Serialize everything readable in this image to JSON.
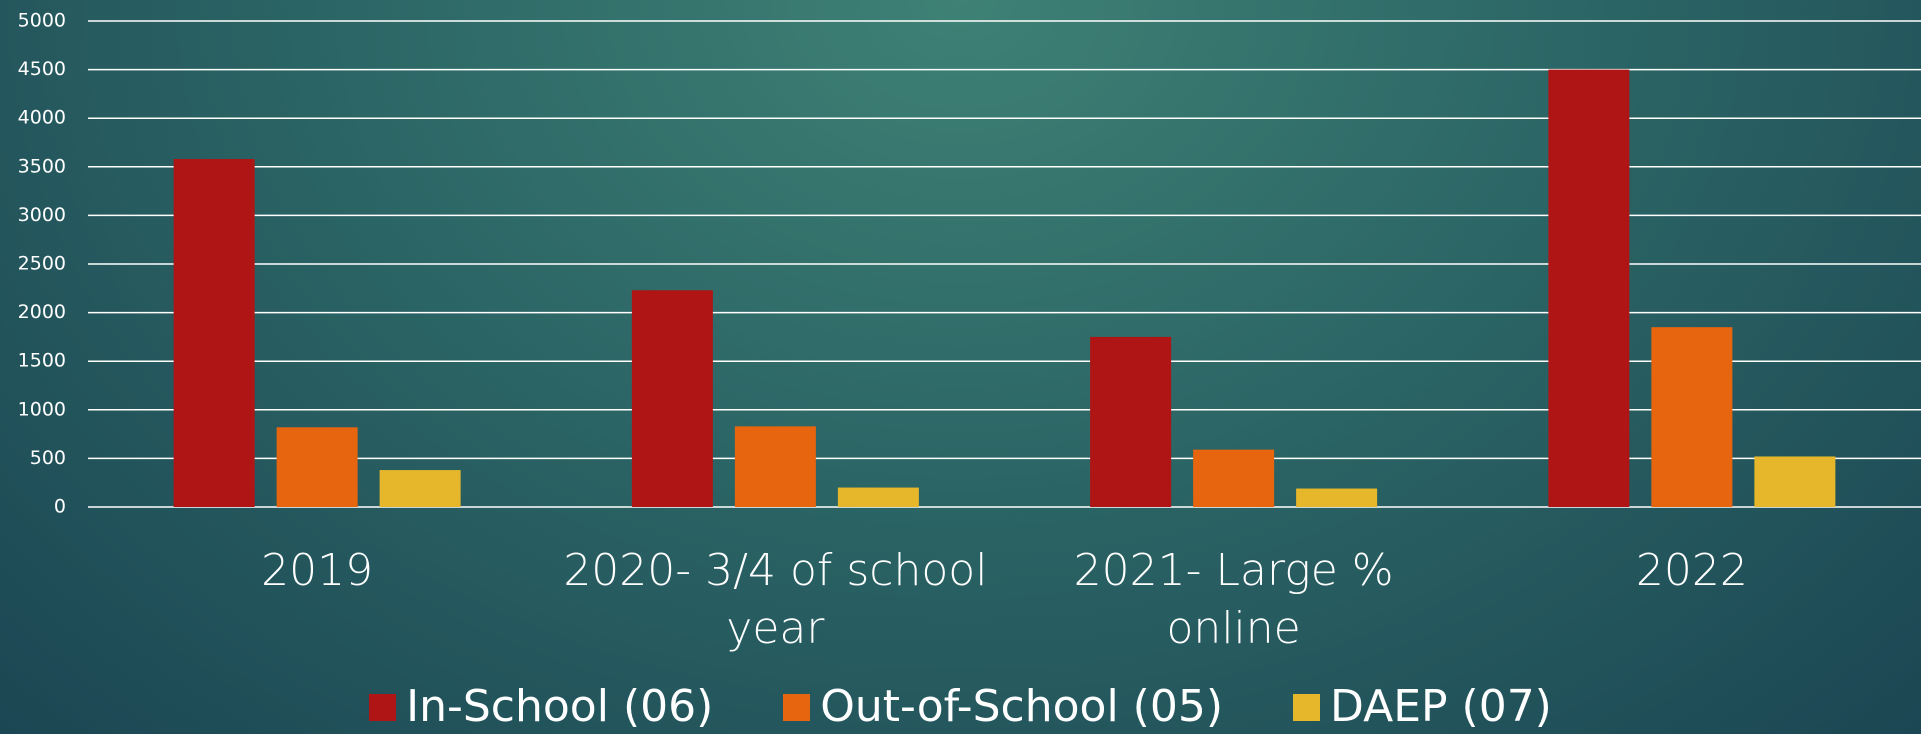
{
  "chart_data": {
    "type": "bar",
    "categories": [
      "2019",
      "2020- 3/4 of school year",
      "2021- Large % online",
      "2022"
    ],
    "series": [
      {
        "name": "In-School (06)",
        "color": "#b01515",
        "values": [
          3580,
          2230,
          1750,
          4500
        ]
      },
      {
        "name": "Out-of-School (05)",
        "color": "#e8650f",
        "values": [
          820,
          830,
          590,
          1850
        ]
      },
      {
        "name": "DAEP (07)",
        "color": "#e6b72b",
        "values": [
          380,
          200,
          190,
          520
        ]
      }
    ],
    "ylim": [
      0,
      5000
    ],
    "yticks": [
      0,
      500,
      1000,
      1500,
      2000,
      2500,
      3000,
      3500,
      4000,
      4500,
      5000
    ],
    "grid": true,
    "legend": "bottom"
  }
}
